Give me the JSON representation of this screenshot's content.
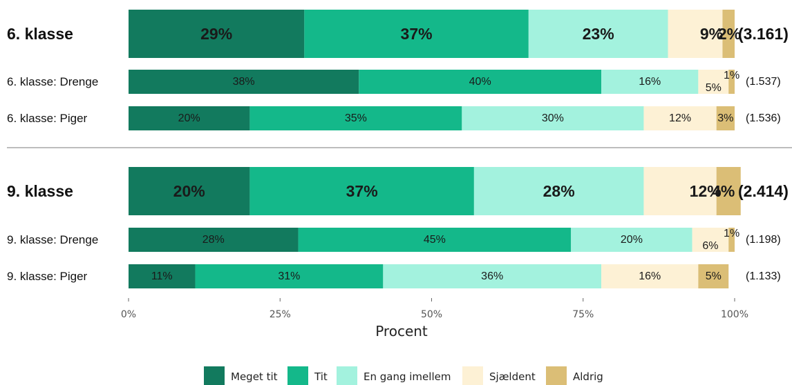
{
  "chart_data": {
    "type": "bar",
    "orientation": "horizontal",
    "stacked": true,
    "xlabel": "Procent",
    "xlim": [
      0,
      100
    ],
    "x_ticks": [
      {
        "value": 0,
        "label": "0%"
      },
      {
        "value": 25,
        "label": "25%"
      },
      {
        "value": 50,
        "label": "50%"
      },
      {
        "value": 75,
        "label": "75%"
      },
      {
        "value": 100,
        "label": "100%"
      }
    ],
    "legend_position": "bottom",
    "series": [
      {
        "name": "Meget tit",
        "color": "#127a5e"
      },
      {
        "name": "Tit",
        "color": "#14b88a"
      },
      {
        "name": "En gang imellem",
        "color": "#a3f2de"
      },
      {
        "name": "Sjældent",
        "color": "#fdf1d5"
      },
      {
        "name": "Aldrig",
        "color": "#dbbe76"
      }
    ],
    "groups": [
      {
        "rows": [
          {
            "label": "6. klasse",
            "n": "(3.161)",
            "main": true,
            "values": [
              29,
              37,
              23,
              9,
              2
            ],
            "labels": [
              "29%",
              "37%",
              "23%",
              "9%",
              "2%"
            ]
          },
          {
            "label": "6. klasse: Drenge",
            "n": "(1.537)",
            "main": false,
            "values": [
              38,
              40,
              16,
              5,
              1
            ],
            "labels": [
              "38%",
              "40%",
              "16%",
              "5%",
              "1%"
            ]
          },
          {
            "label": "6. klasse: Piger",
            "n": "(1.536)",
            "main": false,
            "values": [
              20,
              35,
              30,
              12,
              3
            ],
            "labels": [
              "20%",
              "35%",
              "30%",
              "12%",
              "3%"
            ]
          }
        ]
      },
      {
        "rows": [
          {
            "label": "9. klasse",
            "n": "(2.414)",
            "main": true,
            "values": [
              20,
              37,
              28,
              12,
              4
            ],
            "labels": [
              "20%",
              "37%",
              "28%",
              "12%",
              "4%"
            ]
          },
          {
            "label": "9. klasse: Drenge",
            "n": "(1.198)",
            "main": false,
            "values": [
              28,
              45,
              20,
              6,
              1
            ],
            "labels": [
              "28%",
              "45%",
              "20%",
              "6%",
              "1%"
            ]
          },
          {
            "label": "9. klasse: Piger",
            "n": "(1.133)",
            "main": false,
            "values": [
              11,
              31,
              36,
              16,
              5
            ],
            "labels": [
              "11%",
              "31%",
              "36%",
              "16%",
              "5%"
            ]
          }
        ]
      }
    ]
  }
}
